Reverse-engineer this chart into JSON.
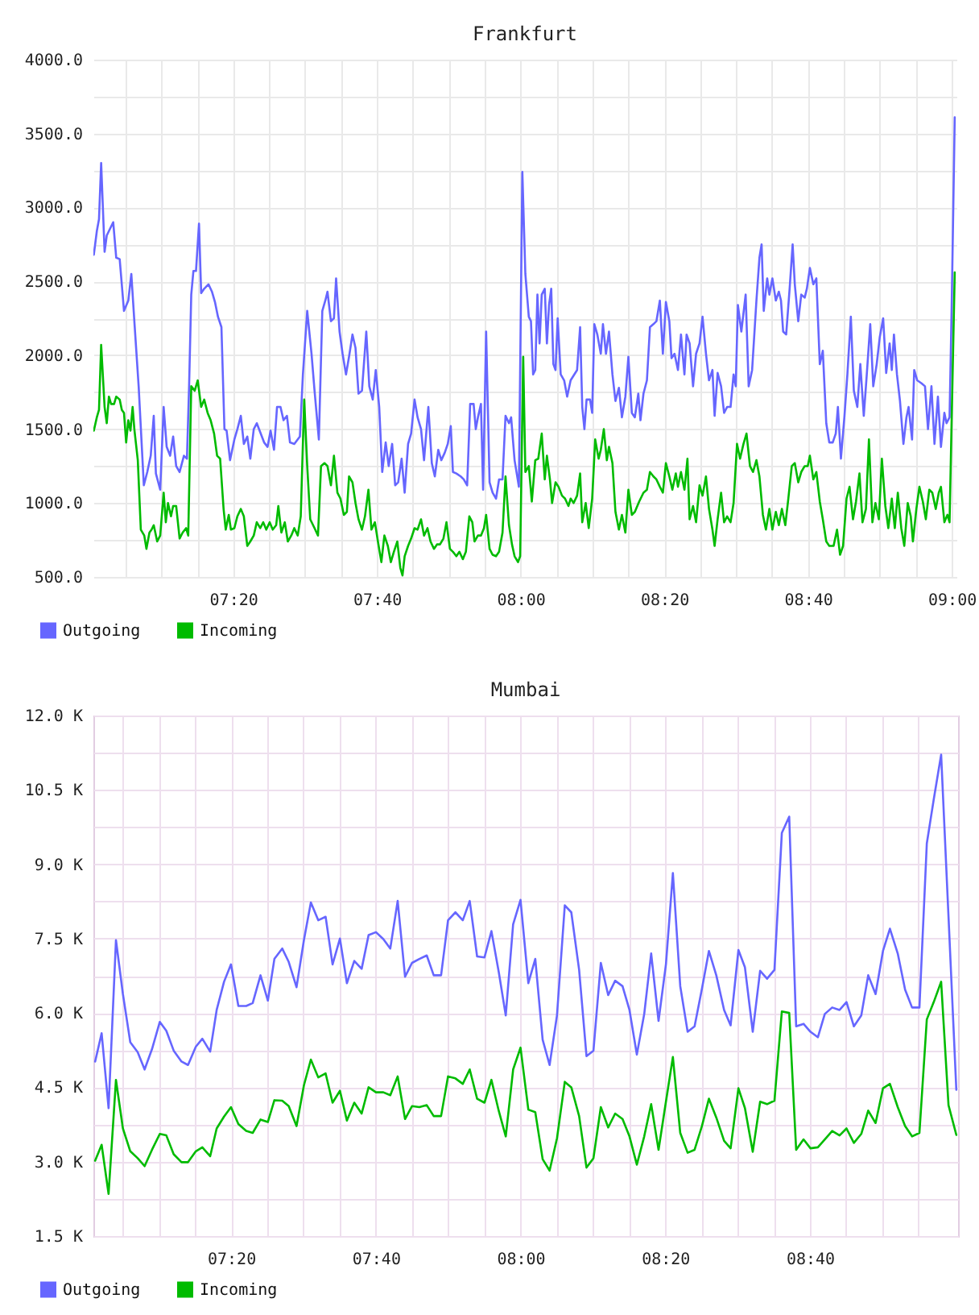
{
  "chart_data": [
    {
      "type": "line",
      "title": "Frankfurt",
      "xlim": [
        7.009,
        9.011
      ],
      "ylim": [
        500,
        4000
      ],
      "grid": true,
      "legend": "bottom left",
      "xticks": [
        {
          "value": 7.0833,
          "label": null
        },
        {
          "value": 7.1667,
          "label": null
        },
        {
          "value": 7.25,
          "label": null
        },
        {
          "value": 7.3333,
          "label": "07:20"
        },
        {
          "value": 7.4167,
          "label": null
        },
        {
          "value": 7.5,
          "label": null
        },
        {
          "value": 7.5833,
          "label": null
        },
        {
          "value": 7.6667,
          "label": "07:40"
        },
        {
          "value": 7.75,
          "label": null
        },
        {
          "value": 7.8333,
          "label": null
        },
        {
          "value": 7.9167,
          "label": null
        },
        {
          "value": 8,
          "label": "08:00"
        },
        {
          "value": 8.0833,
          "label": null
        },
        {
          "value": 8.1667,
          "label": null
        },
        {
          "value": 8.25,
          "label": null
        },
        {
          "value": 8.3333,
          "label": "08:20"
        },
        {
          "value": 8.4167,
          "label": null
        },
        {
          "value": 8.5,
          "label": null
        },
        {
          "value": 8.5833,
          "label": null
        },
        {
          "value": 8.6667,
          "label": "08:40"
        },
        {
          "value": 8.75,
          "label": null
        },
        {
          "value": 8.8333,
          "label": null
        },
        {
          "value": 8.9167,
          "label": null
        },
        {
          "value": 9,
          "label": "09:00"
        }
      ],
      "yticks": [
        {
          "value": 500,
          "label": "500.0"
        },
        {
          "value": 750,
          "label": null
        },
        {
          "value": 1000,
          "label": "1000.0"
        },
        {
          "value": 1250,
          "label": null
        },
        {
          "value": 1500,
          "label": "1500.0"
        },
        {
          "value": 1750,
          "label": null
        },
        {
          "value": 2000,
          "label": "2000.0"
        },
        {
          "value": 2250,
          "label": null
        },
        {
          "value": 2500,
          "label": "2500.0"
        },
        {
          "value": 2750,
          "label": null
        },
        {
          "value": 3000,
          "label": "3000.0"
        },
        {
          "value": 3250,
          "label": null
        },
        {
          "value": 3500,
          "label": "3500.0"
        },
        {
          "value": 3750,
          "label": null
        },
        {
          "value": 4000,
          "label": "4000.0"
        }
      ],
      "series": [
        {
          "name": "Outgoing",
          "color": "#6666ff",
          "x": [
            7.01,
            7.017,
            7.022,
            7.027,
            7.035,
            7.04,
            7.055,
            7.062,
            7.07,
            7.08,
            7.09,
            7.097,
            7.104,
            7.114,
            7.126,
            7.134,
            7.142,
            7.149,
            7.154,
            7.164,
            7.172,
            7.179,
            7.187,
            7.194,
            7.201,
            7.209,
            7.219,
            7.226,
            7.231,
            7.236,
            7.241,
            7.247,
            7.254,
            7.259,
            7.266,
            7.276,
            7.284,
            7.291,
            7.298,
            7.306,
            7.313,
            7.318,
            7.326,
            7.336,
            7.343,
            7.351,
            7.358,
            7.366,
            7.373,
            7.381,
            7.388,
            7.405,
            7.413,
            7.42,
            7.428,
            7.435,
            7.443,
            7.45,
            7.458,
            7.465,
            7.475,
            7.488,
            7.495,
            7.505,
            7.515,
            7.522,
            7.532,
            7.54,
            7.547,
            7.552,
            7.56,
            7.567,
            7.572,
            7.58,
            7.587,
            7.595,
            7.602,
            7.61,
            7.617,
            7.624,
            7.632,
            7.642,
            7.649,
            7.657,
            7.664,
            7.672,
            7.679,
            7.687,
            7.694,
            7.702,
            7.709,
            7.716,
            7.724,
            7.731,
            7.739,
            7.746,
            7.754,
            7.761,
            7.769,
            7.776,
            7.786,
            7.794,
            7.801,
            7.809,
            7.816,
            7.824,
            7.831,
            7.838,
            7.843,
            7.851,
            7.861,
            7.868,
            7.876,
            7.883,
            7.891,
            7.896,
            7.901,
            7.908,
            7.913,
            7.92,
            7.928,
            7.935,
            7.943,
            7.95,
            7.958,
            7.965,
            7.973,
            7.978,
            7.986,
            7.996,
            8.004,
            8.011,
            8.019,
            8.024,
            8.029,
            8.034,
            8.039,
            8.044,
            8.049,
            8.056,
            8.061,
            8.066,
            8.071,
            8.076,
            8.081,
            8.086,
            8.093,
            8.101,
            8.108,
            8.116,
            8.131,
            8.138,
            8.143,
            8.148,
            8.153,
            8.161,
            8.166,
            8.171,
            8.178,
            8.186,
            8.191,
            8.198,
            8.205,
            8.213,
            8.22,
            8.228,
            8.235,
            8.243,
            8.25,
            8.258,
            8.265,
            8.273,
            8.278,
            8.285,
            8.293,
            8.3,
            8.308,
            8.315,
            8.323,
            8.33,
            8.337,
            8.345,
            8.35,
            8.357,
            8.365,
            8.372,
            8.38,
            8.385,
            8.392,
            8.4,
            8.407,
            8.415,
            8.422,
            8.43,
            8.437,
            8.445,
            8.45,
            8.457,
            8.465,
            8.472,
            8.479,
            8.487,
            8.494,
            8.499,
            8.504,
            8.512,
            8.522,
            8.529,
            8.537,
            8.547,
            8.554,
            8.559,
            8.564,
            8.572,
            8.577,
            8.584,
            8.592,
            8.599,
            8.604,
            8.609,
            8.616,
            8.624,
            8.631,
            8.636,
            8.644,
            8.651,
            8.659,
            8.664,
            8.671,
            8.679,
            8.686,
            8.694,
            8.701,
            8.709,
            8.716,
            8.724,
            8.731,
            8.736,
            8.743,
            8.751,
            8.758,
            8.766,
            8.773,
            8.781,
            8.788,
            8.796,
            8.803,
            8.811,
            8.818,
            8.826,
            8.833,
            8.841,
            8.848,
            8.856,
            8.861,
            8.866,
            8.873,
            8.88,
            8.888,
            8.895,
            8.9,
            8.908,
            8.913,
            8.92,
            8.93,
            8.938,
            8.945,
            8.953,
            8.96,
            8.968,
            8.975,
            8.983,
            8.988,
            8.995,
            9.0,
            9.007
          ],
          "values": [
            2680,
            2840,
            2920,
            3300,
            2700,
            2810,
            2900,
            2660,
            2650,
            2300,
            2370,
            2550,
            2230,
            1790,
            1120,
            1210,
            1320,
            1590,
            1200,
            1090,
            1650,
            1380,
            1320,
            1450,
            1250,
            1210,
            1320,
            1300,
            1790,
            2410,
            2570,
            2570,
            2890,
            2420,
            2450,
            2480,
            2430,
            2360,
            2260,
            2190,
            1500,
            1490,
            1290,
            1430,
            1500,
            1590,
            1400,
            1450,
            1300,
            1500,
            1540,
            1410,
            1380,
            1490,
            1360,
            1650,
            1650,
            1560,
            1590,
            1410,
            1400,
            1450,
            1870,
            2300,
            2010,
            1760,
            1430,
            2300,
            2370,
            2430,
            2230,
            2250,
            2520,
            2160,
            2010,
            1870,
            1990,
            2140,
            2050,
            1740,
            1760,
            2160,
            1790,
            1700,
            1900,
            1650,
            1210,
            1410,
            1250,
            1400,
            1120,
            1140,
            1300,
            1070,
            1400,
            1470,
            1700,
            1580,
            1500,
            1290,
            1650,
            1270,
            1180,
            1360,
            1290,
            1340,
            1400,
            1520,
            1210,
            1200,
            1180,
            1160,
            1120,
            1670,
            1670,
            1500,
            1580,
            1670,
            1090,
            2160,
            1140,
            1070,
            1030,
            1160,
            1160,
            1590,
            1540,
            1580,
            1290,
            1110,
            3240,
            2550,
            2260,
            2230,
            1870,
            1900,
            2410,
            2080,
            2410,
            2450,
            2080,
            2340,
            2450,
            1940,
            1900,
            2250,
            1870,
            1830,
            1720,
            1830,
            1900,
            2190,
            1650,
            1500,
            1700,
            1700,
            1610,
            2210,
            2140,
            2010,
            2210,
            2010,
            2160,
            1870,
            1690,
            1780,
            1580,
            1720,
            1990,
            1610,
            1580,
            1740,
            1560,
            1740,
            1830,
            2190,
            2210,
            2230,
            2370,
            2010,
            2360,
            2230,
            1980,
            2010,
            1900,
            2140,
            1870,
            2140,
            2080,
            1790,
            2010,
            2080,
            2260,
            2010,
            1830,
            1900,
            1590,
            1880,
            1790,
            1610,
            1650,
            1650,
            1870,
            1790,
            2340,
            2160,
            2410,
            1790,
            1900,
            2370,
            2660,
            2750,
            2300,
            2520,
            2410,
            2520,
            2370,
            2430,
            2370,
            2160,
            2140,
            2450,
            2750,
            2480,
            2230,
            2410,
            2390,
            2450,
            2590,
            2480,
            2520,
            1940,
            2030,
            1540,
            1410,
            1410,
            1470,
            1650,
            1300,
            1580,
            1870,
            2260,
            1760,
            1650,
            1940,
            1590,
            1870,
            2210,
            1790,
            1940,
            2120,
            2250,
            1880,
            2080,
            1900,
            2140,
            1870,
            1690,
            1400,
            1580,
            1650,
            1430,
            1900,
            1830,
            1810,
            1790,
            1500,
            1790,
            1400,
            1720,
            1380,
            1610,
            1540,
            1580,
            2340,
            3610
          ]
        },
        {
          "name": "Incoming",
          "color": "#00bb00",
          "x": [
            7.01,
            7.017,
            7.022,
            7.027,
            7.035,
            7.04,
            7.045,
            7.05,
            7.057,
            7.062,
            7.07,
            7.075,
            7.08,
            7.085,
            7.09,
            7.095,
            7.1,
            7.104,
            7.112,
            7.119,
            7.127,
            7.132,
            7.139,
            7.144,
            7.149,
            7.157,
            7.164,
            7.172,
            7.177,
            7.182,
            7.189,
            7.194,
            7.201,
            7.209,
            7.216,
            7.224,
            7.229,
            7.236,
            7.244,
            7.251,
            7.259,
            7.266,
            7.274,
            7.281,
            7.289,
            7.296,
            7.303,
            7.311,
            7.316,
            7.323,
            7.328,
            7.336,
            7.343,
            7.351,
            7.358,
            7.366,
            7.373,
            7.381,
            7.388,
            7.396,
            7.403,
            7.41,
            7.418,
            7.425,
            7.433,
            7.438,
            7.445,
            7.453,
            7.46,
            7.468,
            7.475,
            7.483,
            7.49,
            7.498,
            7.505,
            7.512,
            7.522,
            7.53,
            7.537,
            7.545,
            7.552,
            7.56,
            7.567,
            7.575,
            7.582,
            7.59,
            7.597,
            7.602,
            7.61,
            7.617,
            7.624,
            7.632,
            7.639,
            7.647,
            7.654,
            7.662,
            7.669,
            7.677,
            7.684,
            7.692,
            7.699,
            7.706,
            7.714,
            7.721,
            7.726,
            7.731,
            7.739,
            7.746,
            7.754,
            7.761,
            7.769,
            7.776,
            7.784,
            7.791,
            7.799,
            7.806,
            7.813,
            7.821,
            7.828,
            7.836,
            7.843,
            7.851,
            7.858,
            7.866,
            7.873,
            7.881,
            7.888,
            7.893,
            7.901,
            7.908,
            7.915,
            7.92,
            7.928,
            7.935,
            7.943,
            7.95,
            7.958,
            7.965,
            7.973,
            7.98,
            7.986,
            7.994,
            7.999,
            8.006,
            8.011,
            8.019,
            8.026,
            8.034,
            8.041,
            8.049,
            8.056,
            8.061,
            8.068,
            8.073,
            8.081,
            8.088,
            8.096,
            8.103,
            8.111,
            8.116,
            8.123,
            8.131,
            8.138,
            8.143,
            8.151,
            8.158,
            8.166,
            8.173,
            8.181,
            8.186,
            8.193,
            8.2,
            8.205,
            8.213,
            8.22,
            8.228,
            8.235,
            8.243,
            8.25,
            8.258,
            8.265,
            8.275,
            8.285,
            8.293,
            8.3,
            8.308,
            8.315,
            8.323,
            8.33,
            8.337,
            8.345,
            8.352,
            8.36,
            8.365,
            8.372,
            8.38,
            8.387,
            8.392,
            8.4,
            8.407,
            8.415,
            8.422,
            8.43,
            8.437,
            8.445,
            8.45,
            8.457,
            8.465,
            8.472,
            8.479,
            8.487,
            8.494,
            8.502,
            8.509,
            8.517,
            8.524,
            8.532,
            8.539,
            8.547,
            8.554,
            8.562,
            8.569,
            8.577,
            8.584,
            8.592,
            8.599,
            8.606,
            8.614,
            8.621,
            8.629,
            8.636,
            8.644,
            8.651,
            8.659,
            8.666,
            8.671,
            8.679,
            8.686,
            8.694,
            8.701,
            8.709,
            8.716,
            8.726,
            8.734,
            8.741,
            8.748,
            8.756,
            8.763,
            8.771,
            8.778,
            8.786,
            8.793,
            8.801,
            8.808,
            8.816,
            8.823,
            8.831,
            8.838,
            8.846,
            8.853,
            8.861,
            8.868,
            8.875,
            8.883,
            8.89,
            8.898,
            8.905,
            8.91,
            8.918,
            8.925,
            8.933,
            8.94,
            8.948,
            8.955,
            8.963,
            8.97,
            8.975,
            8.983,
            8.99,
            8.995,
            9.0,
            9.007
          ],
          "values": [
            1490,
            1580,
            1630,
            2070,
            1650,
            1540,
            1720,
            1670,
            1670,
            1720,
            1700,
            1630,
            1610,
            1410,
            1560,
            1490,
            1650,
            1500,
            1290,
            820,
            780,
            690,
            800,
            820,
            850,
            740,
            780,
            1070,
            870,
            1000,
            910,
            980,
            980,
            760,
            800,
            830,
            780,
            1790,
            1760,
            1830,
            1650,
            1700,
            1610,
            1560,
            1470,
            1320,
            1300,
            960,
            820,
            920,
            820,
            830,
            910,
            960,
            910,
            710,
            740,
            780,
            870,
            830,
            870,
            820,
            870,
            820,
            850,
            980,
            800,
            870,
            740,
            780,
            830,
            780,
            910,
            1700,
            1250,
            890,
            830,
            780,
            1250,
            1270,
            1250,
            1120,
            1320,
            1070,
            1030,
            920,
            940,
            1180,
            1140,
            1000,
            890,
            820,
            910,
            1090,
            820,
            870,
            740,
            600,
            780,
            710,
            600,
            670,
            740,
            560,
            510,
            640,
            710,
            760,
            830,
            820,
            890,
            780,
            830,
            740,
            690,
            720,
            720,
            760,
            870,
            690,
            670,
            640,
            670,
            620,
            670,
            910,
            870,
            740,
            780,
            780,
            830,
            920,
            690,
            650,
            640,
            670,
            800,
            1180,
            850,
            720,
            640,
            600,
            640,
            1990,
            1210,
            1250,
            1010,
            1290,
            1300,
            1470,
            1160,
            1320,
            1160,
            1000,
            1140,
            1110,
            1050,
            1030,
            980,
            1030,
            1000,
            1050,
            1200,
            870,
            1000,
            830,
            1030,
            1430,
            1300,
            1360,
            1500,
            1290,
            1380,
            1270,
            940,
            820,
            920,
            800,
            1090,
            920,
            940,
            1010,
            1070,
            1090,
            1210,
            1180,
            1160,
            1110,
            1070,
            1270,
            1180,
            1090,
            1200,
            1110,
            1210,
            1090,
            1300,
            890,
            980,
            870,
            1120,
            1050,
            1180,
            960,
            820,
            710,
            890,
            1070,
            870,
            910,
            870,
            1000,
            1400,
            1300,
            1400,
            1470,
            1250,
            1210,
            1290,
            1180,
            920,
            820,
            960,
            820,
            940,
            850,
            960,
            850,
            1030,
            1250,
            1270,
            1140,
            1210,
            1250,
            1250,
            1320,
            1160,
            1210,
            1010,
            890,
            740,
            710,
            710,
            820,
            650,
            710,
            1030,
            1110,
            890,
            1010,
            1200,
            870,
            960,
            1430,
            870,
            1000,
            890,
            1300,
            980,
            830,
            1030,
            830,
            1070,
            830,
            710,
            1000,
            910,
            740,
            960,
            1110,
            1010,
            890,
            1090,
            1070,
            960,
            1070,
            1110,
            870,
            920,
            870,
            1580,
            2560
          ]
        }
      ]
    },
    {
      "type": "line",
      "title": "Mumbai",
      "xlim": [
        7.016,
        9.008
      ],
      "ylim": [
        1500,
        12000
      ],
      "grid": true,
      "legend": "bottom left",
      "xticks": [
        {
          "value": 7.0833,
          "label": null
        },
        {
          "value": 7.1667,
          "label": null
        },
        {
          "value": 7.25,
          "label": null
        },
        {
          "value": 7.3333,
          "label": "07:20"
        },
        {
          "value": 7.4167,
          "label": null
        },
        {
          "value": 7.5,
          "label": null
        },
        {
          "value": 7.5833,
          "label": null
        },
        {
          "value": 7.6667,
          "label": "07:40"
        },
        {
          "value": 7.75,
          "label": null
        },
        {
          "value": 7.8333,
          "label": null
        },
        {
          "value": 7.9167,
          "label": null
        },
        {
          "value": 8,
          "label": "08:00"
        },
        {
          "value": 8.0833,
          "label": null
        },
        {
          "value": 8.1667,
          "label": null
        },
        {
          "value": 8.25,
          "label": null
        },
        {
          "value": 8.3333,
          "label": "08:20"
        },
        {
          "value": 8.4167,
          "label": null
        },
        {
          "value": 8.5,
          "label": null
        },
        {
          "value": 8.5833,
          "label": null
        },
        {
          "value": 8.6667,
          "label": "08:40"
        },
        {
          "value": 8.75,
          "label": null
        },
        {
          "value": 8.8333,
          "label": null
        },
        {
          "value": 8.9167,
          "label": null
        }
      ],
      "yticks": [
        {
          "value": 1500,
          "label": "1.5 K"
        },
        {
          "value": 2250,
          "label": null
        },
        {
          "value": 3000,
          "label": "3.0 K"
        },
        {
          "value": 3750,
          "label": null
        },
        {
          "value": 4500,
          "label": "4.5 K"
        },
        {
          "value": 5250,
          "label": null
        },
        {
          "value": 6000,
          "label": "6.0 K"
        },
        {
          "value": 6750,
          "label": null
        },
        {
          "value": 7500,
          "label": "7.5 K"
        },
        {
          "value": 8250,
          "label": null
        },
        {
          "value": 9000,
          "label": "9.0 K"
        },
        {
          "value": 9750,
          "label": null
        },
        {
          "value": 10500,
          "label": "10.5 K"
        },
        {
          "value": 11250,
          "label": null
        },
        {
          "value": 12000,
          "label": "12.0 K"
        }
      ],
      "x": [
        7.02,
        7.035,
        7.051,
        7.068,
        7.084,
        7.101,
        7.118,
        7.134,
        7.151,
        7.169,
        7.184,
        7.201,
        7.219,
        7.234,
        7.252,
        7.267,
        7.285,
        7.3,
        7.317,
        7.333,
        7.35,
        7.368,
        7.383,
        7.401,
        7.418,
        7.433,
        7.451,
        7.466,
        7.484,
        7.501,
        7.517,
        7.534,
        7.551,
        7.567,
        7.584,
        7.6,
        7.617,
        7.634,
        7.65,
        7.667,
        7.684,
        7.7,
        7.717,
        7.734,
        7.75,
        7.767,
        7.784,
        7.8,
        7.817,
        7.833,
        7.85,
        7.867,
        7.883,
        7.9,
        7.917,
        7.933,
        7.95,
        7.966,
        7.983,
        8.0,
        8.018,
        8.034,
        8.051,
        8.067,
        8.084,
        8.102,
        8.117,
        8.135,
        8.152,
        8.168,
        8.185,
        8.202,
        8.218,
        8.235,
        8.251,
        8.268,
        8.285,
        8.301,
        8.318,
        8.335,
        8.351,
        8.368,
        8.385,
        8.401,
        8.418,
        8.434,
        8.451,
        8.469,
        8.484,
        8.502,
        8.517,
        8.535,
        8.552,
        8.568,
        8.585,
        8.602,
        8.619,
        8.635,
        8.652,
        8.668,
        8.685,
        8.701,
        8.718,
        8.735,
        8.751,
        8.768,
        8.785,
        8.801,
        8.818,
        8.835,
        8.851,
        8.869,
        8.886,
        8.902,
        8.919,
        8.936,
        8.952,
        8.969,
        8.986,
        9.004
      ],
      "series": [
        {
          "name": "Outgoing",
          "color": "#6666ff",
          "values": [
            5020,
            5590,
            4080,
            7470,
            6380,
            5410,
            5210,
            4860,
            5270,
            5820,
            5640,
            5240,
            5020,
            4950,
            5320,
            5480,
            5220,
            6060,
            6630,
            6980,
            6140,
            6140,
            6200,
            6760,
            6250,
            7090,
            7300,
            7030,
            6520,
            7470,
            8230,
            7870,
            7940,
            6980,
            7500,
            6600,
            7050,
            6890,
            7570,
            7630,
            7490,
            7300,
            8260,
            6730,
            7010,
            7090,
            7160,
            6760,
            6760,
            7870,
            8030,
            7870,
            8260,
            7140,
            7120,
            7650,
            6820,
            5950,
            7790,
            8280,
            6600,
            7090,
            5460,
            4950,
            5950,
            8170,
            8030,
            6870,
            5130,
            5240,
            7010,
            6360,
            6650,
            6540,
            6060,
            5160,
            5980,
            7200,
            5840,
            6980,
            8820,
            6540,
            5620,
            5730,
            6490,
            7250,
            6760,
            6060,
            5750,
            7270,
            6920,
            5620,
            6850,
            6690,
            6870,
            9630,
            9960,
            5730,
            5780,
            5620,
            5510,
            5980,
            6110,
            6060,
            6220,
            5730,
            5950,
            6760,
            6380,
            7250,
            7700,
            7200,
            6470,
            6110,
            6110,
            9420,
            10310,
            11210,
            7940,
            4450
          ]
        },
        {
          "name": "Incoming",
          "color": "#00bb00",
          "values": [
            3020,
            3340,
            2350,
            4650,
            3670,
            3210,
            3070,
            2910,
            3240,
            3560,
            3530,
            3150,
            2990,
            2990,
            3210,
            3290,
            3110,
            3670,
            3910,
            4100,
            3760,
            3620,
            3580,
            3850,
            3800,
            4240,
            4230,
            4120,
            3720,
            4540,
            5060,
            4700,
            4780,
            4190,
            4430,
            3830,
            4190,
            3970,
            4500,
            4400,
            4400,
            4340,
            4720,
            3860,
            4120,
            4100,
            4140,
            3920,
            3920,
            4720,
            4680,
            4570,
            4860,
            4270,
            4190,
            4650,
            4020,
            3510,
            4860,
            5300,
            4050,
            4000,
            3050,
            2820,
            3470,
            4610,
            4500,
            3920,
            2880,
            3070,
            4100,
            3690,
            3970,
            3860,
            3510,
            2940,
            3510,
            4160,
            3240,
            4210,
            5110,
            3580,
            3180,
            3240,
            3720,
            4270,
            3890,
            3420,
            3270,
            4480,
            4080,
            3200,
            4210,
            4160,
            4230,
            6030,
            6000,
            3240,
            3450,
            3270,
            3290,
            3450,
            3620,
            3530,
            3670,
            3380,
            3560,
            4030,
            3780,
            4480,
            4570,
            4100,
            3720,
            3510,
            3580,
            5870,
            6220,
            6630,
            4140,
            3540
          ]
        }
      ]
    }
  ]
}
